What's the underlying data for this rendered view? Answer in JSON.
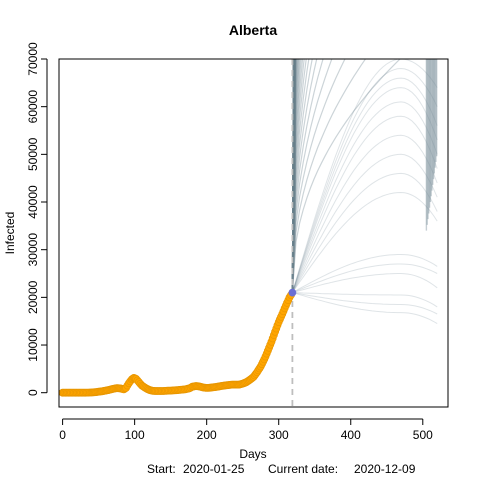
{
  "chart_data": {
    "type": "line",
    "title": "Alberta",
    "xlabel": "Days",
    "ylabel": "Infected",
    "footer": {
      "start_label": "Start:",
      "start_date": "2020-01-25",
      "current_label": "Current date:",
      "current_date": "2020-12-09"
    },
    "xlim": [
      -5,
      535
    ],
    "ylim": [
      -3000,
      70000
    ],
    "x_ticks": [
      0,
      100,
      200,
      300,
      400,
      500
    ],
    "y_ticks": [
      0,
      10000,
      20000,
      30000,
      40000,
      50000,
      60000,
      70000
    ],
    "current_day": 319,
    "forecast_end_day": 520,
    "forecast_start_value": 21000,
    "colors": {
      "observed": "#FFA500",
      "observed_edge": "#E69500",
      "forecast": "#6E8590",
      "current_marker": "#6B6FD4",
      "vline": "#BEBEBE",
      "axis": "#000000"
    },
    "observed": [
      [
        0,
        0
      ],
      [
        10,
        0
      ],
      [
        20,
        0
      ],
      [
        30,
        0
      ],
      [
        40,
        50
      ],
      [
        45,
        100
      ],
      [
        50,
        200
      ],
      [
        55,
        300
      ],
      [
        60,
        450
      ],
      [
        65,
        600
      ],
      [
        70,
        800
      ],
      [
        75,
        950
      ],
      [
        80,
        900
      ],
      [
        85,
        700
      ],
      [
        88,
        1000
      ],
      [
        92,
        2000
      ],
      [
        96,
        2800
      ],
      [
        99,
        3100
      ],
      [
        102,
        2900
      ],
      [
        106,
        2200
      ],
      [
        110,
        1500
      ],
      [
        115,
        1000
      ],
      [
        120,
        600
      ],
      [
        125,
        400
      ],
      [
        130,
        350
      ],
      [
        140,
        350
      ],
      [
        150,
        450
      ],
      [
        160,
        550
      ],
      [
        170,
        700
      ],
      [
        176,
        900
      ],
      [
        180,
        1250
      ],
      [
        185,
        1400
      ],
      [
        190,
        1300
      ],
      [
        195,
        1100
      ],
      [
        200,
        1000
      ],
      [
        205,
        1050
      ],
      [
        210,
        1150
      ],
      [
        215,
        1250
      ],
      [
        220,
        1400
      ],
      [
        225,
        1500
      ],
      [
        230,
        1600
      ],
      [
        235,
        1700
      ],
      [
        240,
        1700
      ],
      [
        245,
        1700
      ],
      [
        250,
        1900
      ],
      [
        255,
        2200
      ],
      [
        260,
        2700
      ],
      [
        265,
        3300
      ],
      [
        270,
        4300
      ],
      [
        275,
        5500
      ],
      [
        280,
        7000
      ],
      [
        285,
        8800
      ],
      [
        290,
        10700
      ],
      [
        295,
        12800
      ],
      [
        300,
        14800
      ],
      [
        305,
        16500
      ],
      [
        310,
        18300
      ],
      [
        315,
        20000
      ],
      [
        319,
        21000
      ]
    ],
    "forecast_envelopes": [
      {
        "peak": 16800,
        "end": 14500
      },
      {
        "peak": 18500,
        "end": 16500
      },
      {
        "peak": 20500,
        "end": 18000
      },
      {
        "peak": 25000,
        "end": 22000
      },
      {
        "peak": 27000,
        "end": 25000
      },
      {
        "peak": 29000,
        "end": 26500
      },
      {
        "peak": 42000,
        "end": 36000
      },
      {
        "peak": 46000,
        "end": 38000
      },
      {
        "peak": 50000,
        "end": 41000
      },
      {
        "peak": 54000,
        "end": 44000
      },
      {
        "peak": 58000,
        "end": 47000
      },
      {
        "peak": 61000,
        "end": 50000
      },
      {
        "peak": 64000,
        "end": 53000
      },
      {
        "peak": 66000,
        "end": 56000
      },
      {
        "peak": 68000,
        "end": 60000
      },
      {
        "peak": 70000,
        "end": 64000
      }
    ]
  }
}
